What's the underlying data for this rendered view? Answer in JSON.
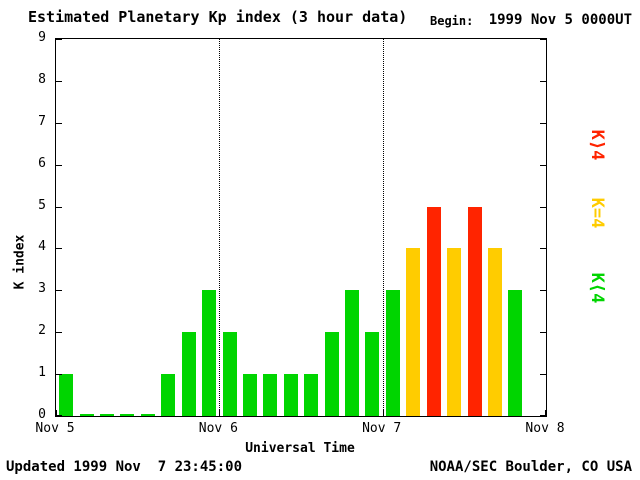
{
  "title": "Estimated Planetary Kp index (3 hour data)",
  "begin_label": "Begin:",
  "begin_value": "1999 Nov 5 0000UT",
  "footer": {
    "updated": "Updated 1999 Nov  7 23:45:00",
    "source": "NOAA/SEC Boulder, CO USA"
  },
  "chart_data": {
    "type": "bar",
    "title": "Estimated Planetary Kp index (3 hour data)",
    "xlabel": "Universal Time",
    "ylabel": "K index",
    "ylim": [
      0,
      9
    ],
    "yticks": [
      0,
      1,
      2,
      3,
      4,
      5,
      6,
      7,
      8,
      9
    ],
    "xticklabels": [
      "Nov 5",
      "Nov 6",
      "Nov 7",
      "Nov 8"
    ],
    "bin_hours": 3,
    "slots_total": 24,
    "values": [
      1,
      0,
      0,
      0,
      0,
      1,
      2,
      3,
      2,
      1,
      1,
      1,
      1,
      2,
      3,
      2,
      3,
      4,
      5,
      4,
      5,
      4,
      3
    ],
    "grid": "day-boundaries-dotted",
    "colors": {
      "low": "#00d500",
      "mid": "#ffcc00",
      "high": "#ff2400"
    },
    "legend_position": "right-rotated",
    "legend": [
      {
        "label": "K⟩4",
        "color": "#ff2400"
      },
      {
        "label": "K=4",
        "color": "#ffcc00"
      },
      {
        "label": "K⟨4",
        "color": "#00d500"
      }
    ]
  }
}
